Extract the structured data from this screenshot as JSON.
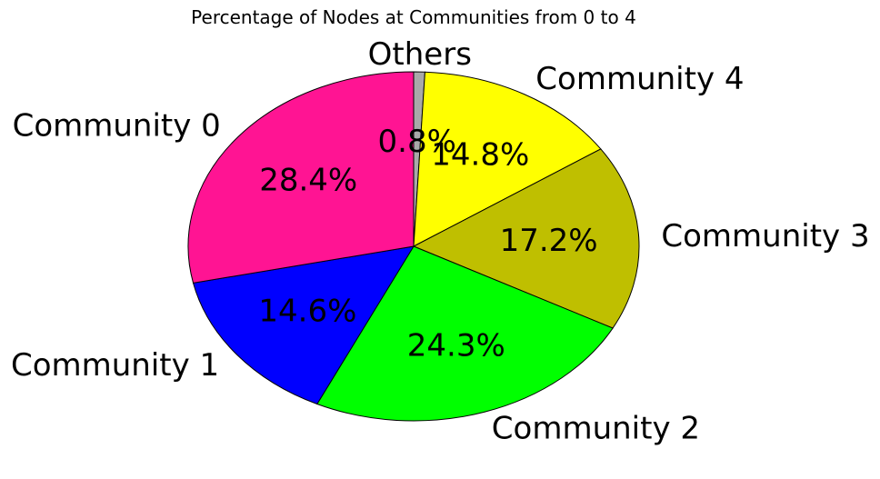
{
  "chart_data": {
    "type": "pie",
    "title": "Percentage of Nodes at Communities from 0 to 4",
    "slices": [
      {
        "label": "Others",
        "value": 0.8,
        "pct_label": "0.8%",
        "color": "#a9a9a9"
      },
      {
        "label": "Community 4",
        "value": 14.8,
        "pct_label": "14.8%",
        "color": "#ffff00"
      },
      {
        "label": "Community 3",
        "value": 17.2,
        "pct_label": "17.2%",
        "color": "#bfbf00"
      },
      {
        "label": "Community 2",
        "value": 24.3,
        "pct_label": "24.3%",
        "color": "#00ff00"
      },
      {
        "label": "Community 1",
        "value": 14.6,
        "pct_label": "14.6%",
        "color": "#0000ff"
      },
      {
        "label": "Community 0",
        "value": 28.4,
        "pct_label": "28.4%",
        "color": "#ff1493"
      }
    ],
    "start": "top",
    "direction": "clockwise"
  }
}
